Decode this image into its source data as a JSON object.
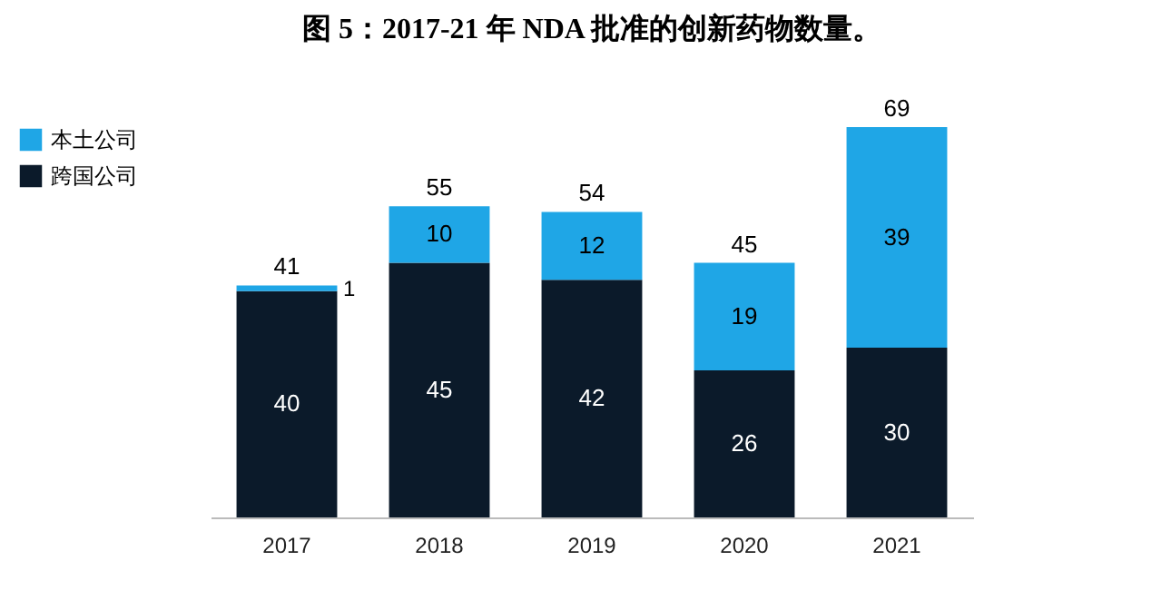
{
  "chart_data": {
    "type": "bar",
    "title": "图 5：2017-21 年 NDA 批准的创新药物数量。",
    "categories": [
      "2017",
      "2018",
      "2019",
      "2020",
      "2021"
    ],
    "stacked": true,
    "series": [
      {
        "name": "跨国公司",
        "color": "#0b1a2a",
        "values": [
          40,
          45,
          42,
          26,
          30
        ]
      },
      {
        "name": "本土公司",
        "color": "#1fa6e6",
        "values": [
          1,
          10,
          12,
          19,
          39
        ]
      }
    ],
    "totals": [
      "41",
      "55",
      "54",
      "45",
      "69"
    ],
    "data_labels": true,
    "legend": "top left",
    "tick_labels": "x",
    "grid": false
  }
}
